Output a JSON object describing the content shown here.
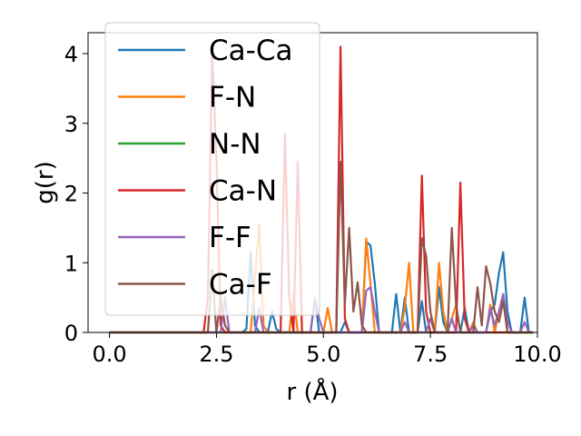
{
  "chart_data": {
    "type": "line",
    "xlabel": "r (Å)",
    "ylabel": "g(r)",
    "xlim": [
      -0.5,
      10.0
    ],
    "ylim": [
      0,
      4.3
    ],
    "xticks": [
      0.0,
      2.5,
      5.0,
      7.5,
      10.0
    ],
    "xtick_labels": [
      "0.0",
      "2.5",
      "5.0",
      "7.5",
      "10.0"
    ],
    "yticks": [
      0,
      1,
      2,
      3,
      4
    ],
    "ytick_labels": [
      "0",
      "1",
      "2",
      "3",
      "4"
    ],
    "grid": false,
    "legend_position": "upper-left",
    "series": [
      {
        "name": "Ca-Ca",
        "color": "#1f77b4",
        "points": [
          [
            0,
            0
          ],
          [
            3.1,
            0
          ],
          [
            3.2,
            0.05
          ],
          [
            3.3,
            1.15
          ],
          [
            3.4,
            0.1
          ],
          [
            3.5,
            0
          ],
          [
            3.7,
            0
          ],
          [
            3.8,
            0.3
          ],
          [
            3.9,
            0.05
          ],
          [
            4.0,
            0
          ],
          [
            4.7,
            0
          ],
          [
            4.8,
            0.5
          ],
          [
            4.9,
            0
          ],
          [
            5.4,
            0
          ],
          [
            5.5,
            0.15
          ],
          [
            5.6,
            0
          ],
          [
            5.9,
            0
          ],
          [
            6.0,
            1.3
          ],
          [
            6.1,
            1.25
          ],
          [
            6.2,
            0.7
          ],
          [
            6.3,
            0
          ],
          [
            6.6,
            0
          ],
          [
            6.7,
            0.55
          ],
          [
            6.8,
            0
          ],
          [
            6.9,
            0.5
          ],
          [
            7.0,
            0
          ],
          [
            7.2,
            0
          ],
          [
            7.3,
            0.45
          ],
          [
            7.4,
            0
          ],
          [
            7.6,
            0
          ],
          [
            7.7,
            0.65
          ],
          [
            7.8,
            0.15
          ],
          [
            7.9,
            0
          ],
          [
            8.2,
            0
          ],
          [
            8.3,
            0.35
          ],
          [
            8.4,
            0
          ],
          [
            8.8,
            0
          ],
          [
            8.9,
            0.3
          ],
          [
            9.0,
            0.4
          ],
          [
            9.1,
            0.85
          ],
          [
            9.2,
            1.15
          ],
          [
            9.3,
            0.3
          ],
          [
            9.4,
            0
          ],
          [
            9.6,
            0
          ],
          [
            9.7,
            0.5
          ],
          [
            9.8,
            0
          ],
          [
            9.9,
            0
          ]
        ]
      },
      {
        "name": "F-N",
        "color": "#ff7f0e",
        "points": [
          [
            0,
            0
          ],
          [
            3.3,
            0
          ],
          [
            3.4,
            0.8
          ],
          [
            3.5,
            1.55
          ],
          [
            3.6,
            0.1
          ],
          [
            3.7,
            0
          ],
          [
            4.2,
            0
          ],
          [
            4.3,
            0.55
          ],
          [
            4.4,
            0
          ],
          [
            5.0,
            0
          ],
          [
            5.1,
            0.35
          ],
          [
            5.2,
            0
          ],
          [
            5.9,
            0
          ],
          [
            6.0,
            1.35
          ],
          [
            6.1,
            0.7
          ],
          [
            6.2,
            0
          ],
          [
            6.8,
            0
          ],
          [
            6.9,
            0.35
          ],
          [
            7.0,
            1.0
          ],
          [
            7.1,
            0
          ],
          [
            7.6,
            0
          ],
          [
            7.7,
            1.0
          ],
          [
            7.8,
            0.3
          ],
          [
            7.9,
            0
          ],
          [
            8.1,
            0.4
          ],
          [
            8.2,
            0
          ],
          [
            8.4,
            0
          ],
          [
            8.5,
            0.15
          ],
          [
            8.6,
            0
          ],
          [
            8.8,
            0
          ],
          [
            8.9,
            0.4
          ],
          [
            9.0,
            0
          ],
          [
            9.1,
            0.3
          ],
          [
            9.2,
            0.55
          ],
          [
            9.3,
            0
          ],
          [
            9.9,
            0
          ]
        ]
      },
      {
        "name": "N-N",
        "color": "#2ca02c",
        "points": [
          [
            0,
            0
          ],
          [
            9.9,
            0
          ]
        ]
      },
      {
        "name": "Ca-N",
        "color": "#d62728",
        "points": [
          [
            0,
            0
          ],
          [
            2.2,
            0
          ],
          [
            2.3,
            0.5
          ],
          [
            2.4,
            4.05
          ],
          [
            2.5,
            2.5
          ],
          [
            2.6,
            0.1
          ],
          [
            2.7,
            0
          ],
          [
            4.0,
            0
          ],
          [
            4.1,
            2.85
          ],
          [
            4.2,
            0.5
          ],
          [
            4.3,
            0
          ],
          [
            4.4,
            2.45
          ],
          [
            4.5,
            0
          ],
          [
            5.3,
            0
          ],
          [
            5.4,
            4.1
          ],
          [
            5.5,
            0.2
          ],
          [
            5.6,
            0
          ],
          [
            7.2,
            0
          ],
          [
            7.3,
            2.25
          ],
          [
            7.4,
            0.3
          ],
          [
            7.5,
            0
          ],
          [
            8.1,
            0
          ],
          [
            8.2,
            2.15
          ],
          [
            8.3,
            0.2
          ],
          [
            8.4,
            0
          ],
          [
            9.9,
            0
          ]
        ]
      },
      {
        "name": "F-F",
        "color": "#9467bd",
        "points": [
          [
            0,
            0
          ],
          [
            2.6,
            0
          ],
          [
            2.7,
            0.5
          ],
          [
            2.8,
            0
          ],
          [
            3.4,
            0
          ],
          [
            3.5,
            0.35
          ],
          [
            3.6,
            0
          ],
          [
            4.7,
            0
          ],
          [
            4.8,
            0.5
          ],
          [
            4.9,
            0.2
          ],
          [
            5.0,
            0
          ],
          [
            5.9,
            0
          ],
          [
            6.0,
            0.6
          ],
          [
            6.1,
            0.65
          ],
          [
            6.2,
            0.3
          ],
          [
            6.3,
            0
          ],
          [
            6.8,
            0
          ],
          [
            6.9,
            0.15
          ],
          [
            7.0,
            0
          ],
          [
            7.4,
            0
          ],
          [
            7.5,
            0.2
          ],
          [
            7.6,
            0
          ],
          [
            7.9,
            0
          ],
          [
            8.0,
            0.2
          ],
          [
            8.1,
            0
          ],
          [
            8.4,
            0
          ],
          [
            8.5,
            0.1
          ],
          [
            8.6,
            0
          ],
          [
            8.8,
            0
          ],
          [
            8.9,
            0.35
          ],
          [
            9.0,
            0.1
          ],
          [
            9.1,
            0.3
          ],
          [
            9.2,
            0.55
          ],
          [
            9.3,
            0.15
          ],
          [
            9.4,
            0
          ],
          [
            9.6,
            0
          ],
          [
            9.7,
            0.15
          ],
          [
            9.8,
            0
          ],
          [
            9.9,
            0
          ]
        ]
      },
      {
        "name": "Ca-F",
        "color": "#8c564b",
        "points": [
          [
            0,
            0
          ],
          [
            2.3,
            0
          ],
          [
            2.4,
            0.9
          ],
          [
            2.5,
            0
          ],
          [
            2.6,
            0.5
          ],
          [
            2.7,
            0.1
          ],
          [
            2.8,
            0
          ],
          [
            5.3,
            0
          ],
          [
            5.4,
            2.45
          ],
          [
            5.5,
            0.4
          ],
          [
            5.6,
            1.5
          ],
          [
            5.7,
            0.3
          ],
          [
            5.8,
            0.72
          ],
          [
            5.9,
            0.1
          ],
          [
            6.0,
            0
          ],
          [
            7.2,
            0
          ],
          [
            7.3,
            1.35
          ],
          [
            7.4,
            1.1
          ],
          [
            7.5,
            0.3
          ],
          [
            7.6,
            0
          ],
          [
            7.9,
            0
          ],
          [
            8.0,
            1.5
          ],
          [
            8.1,
            0.4
          ],
          [
            8.2,
            0
          ],
          [
            8.5,
            0
          ],
          [
            8.6,
            0.65
          ],
          [
            8.7,
            0.1
          ],
          [
            8.8,
            0.95
          ],
          [
            8.9,
            0.7
          ],
          [
            9.0,
            0.3
          ],
          [
            9.1,
            0.15
          ],
          [
            9.2,
            0.45
          ],
          [
            9.3,
            0
          ],
          [
            9.9,
            0
          ]
        ]
      }
    ]
  }
}
